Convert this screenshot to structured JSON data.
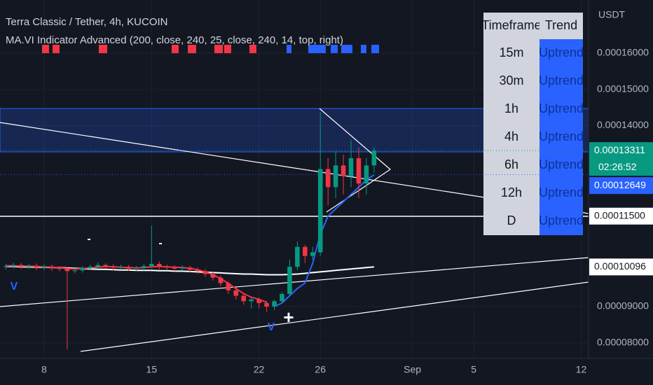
{
  "chart_data": {
    "type": "candlestick",
    "title": "Terra Classic / Tether, 4h, KUCOIN",
    "subtitle": "MA.VI Indicator Advanced (200, close, 240, 25, close, 240, 14, top, right)",
    "y_axis_unit": "USDT",
    "up_color": "#089981",
    "down_color": "#f23645",
    "x": [
      5.5,
      6,
      6.5,
      7,
      7.5,
      8,
      8.5,
      9,
      9.5,
      10,
      10.5,
      11,
      11.5,
      12,
      12.5,
      13,
      13.5,
      14,
      14.5,
      15,
      15.5,
      16,
      16.5,
      17,
      17.5,
      18,
      18.5,
      19,
      19.5,
      20,
      20.5,
      21,
      21.5,
      22,
      22.5,
      23,
      23.5,
      24,
      24.5,
      25,
      25.5,
      26,
      26.5,
      27,
      27.5,
      28,
      28.5,
      29,
      29.5
    ],
    "open": [
      0.000101,
      0.0001012,
      0.0001015,
      0.000101,
      0.0001013,
      0.0001008,
      0.0001011,
      0.0001006,
      0.0001005,
      9.98e-05,
      0.0001,
      0.0001006,
      0.000101,
      0.0001015,
      0.0001012,
      0.0001008,
      0.000101,
      0.0001005,
      0.0001007,
      0.0001012,
      0.0001018,
      0.000101,
      0.0001009,
      0.0001005,
      0.0001008,
      0.0001002,
      9.98e-05,
      9.9e-05,
      9.8e-05,
      9.65e-05,
      9.45e-05,
      9.3e-05,
      9.15e-05,
      9.2e-05,
      9.1e-05,
      9e-05,
      9.15e-05,
      9.35e-05,
      0.000101,
      0.0001065,
      0.000104,
      0.000105,
      0.000128,
      0.000123,
      0.000129,
      0.000126,
      0.000131,
      0.000124,
      0.000129
    ],
    "high": [
      0.0001019,
      0.0001021,
      0.000102,
      0.0001018,
      0.0001019,
      0.0001017,
      0.0001016,
      0.0001012,
      0.000101,
      0.0001006,
      0.0001012,
      0.0001016,
      0.0001022,
      0.000102,
      0.0001017,
      0.0001016,
      0.0001015,
      0.0001012,
      0.0001018,
      0.0001124,
      0.0001025,
      0.0001016,
      0.0001014,
      0.0001014,
      0.0001013,
      0.0001008,
      0.0001004,
      9.96e-05,
      9.86e-05,
      9.7e-05,
      9.5e-05,
      9.35e-05,
      9.26e-05,
      9.25e-05,
      9.16e-05,
      9.2e-05,
      9.4e-05,
      0.000103,
      0.000108,
      0.000107,
      0.0001065,
      0.0001437,
      0.000131,
      0.000133,
      0.000132,
      0.000136,
      0.000134,
      0.000131,
      0.000134
    ],
    "low": [
      0.0001003,
      0.0001005,
      0.0001004,
      0.0001004,
      0.0001001,
      0.0001001,
      9.99e-05,
      9.98e-05,
      7.82e-05,
      9.92e-05,
      9.94e-05,
      0.0001,
      0.0001004,
      0.0001006,
      0.0001001,
      0.0001002,
      9.99e-05,
      9.99e-05,
      0.0001,
      0.0001006,
      0.0001003,
      0.0001002,
      9.98e-05,
      9.99e-05,
      9.95e-05,
      9.9e-05,
      9.82e-05,
      9.72e-05,
      9.56e-05,
      9.35e-05,
      9.2e-05,
      9.05e-05,
      8.95e-05,
      8.95e-05,
      8.85e-05,
      8.9e-05,
      9.08e-05,
      9.3e-05,
      0.0001,
      0.000102,
      0.000103,
      0.000104,
      0.000118,
      0.00012,
      0.000121,
      0.000123,
      0.00012,
      0.000121,
      0.000127
    ],
    "close": [
      0.0001012,
      0.0001015,
      0.000101,
      0.0001013,
      0.0001008,
      0.0001011,
      0.0001006,
      0.0001005,
      9.98e-05,
      0.0001,
      0.0001006,
      0.000101,
      0.0001015,
      0.0001012,
      0.0001008,
      0.000101,
      0.0001005,
      0.0001007,
      0.0001012,
      0.0001018,
      0.000101,
      0.0001009,
      0.0001005,
      0.0001008,
      0.0001002,
      9.98e-05,
      9.9e-05,
      9.8e-05,
      9.65e-05,
      9.45e-05,
      9.3e-05,
      9.15e-05,
      9.2e-05,
      9.1e-05,
      9e-05,
      9.15e-05,
      9.35e-05,
      0.000101,
      0.0001065,
      0.000104,
      0.000105,
      0.000128,
      0.000123,
      0.000129,
      0.000126,
      0.000131,
      0.000124,
      0.000129,
      0.00013311
    ],
    "series": [
      {
        "color": "#ffffff",
        "values": [
          0.0001011,
          0.0001011,
          0.000101,
          0.000101,
          0.0001009,
          0.0001009,
          0.0001008,
          0.0001008,
          0.0001007,
          0.0001006,
          0.0001005,
          0.0001004,
          0.0001003,
          0.0001003,
          0.0001002,
          0.0001001,
          0.0001001,
          0.0001,
          0.0001,
          0.0001,
          9.99e-05,
          9.99e-05,
          9.98e-05,
          9.98e-05,
          9.97e-05,
          9.96e-05,
          9.95e-05,
          9.94e-05,
          9.93e-05,
          9.92e-05,
          9.91e-05,
          9.9e-05,
          9.9e-05,
          9.89e-05,
          9.88e-05,
          9.88e-05,
          9.88e-05,
          9.89e-05,
          9.9e-05,
          9.92e-05,
          9.94e-05,
          9.96e-05,
          9.98e-05,
          0.0001,
          0.0001002,
          0.0001004,
          0.0001006,
          0.0001008,
          0.000101
        ]
      },
      {
        "color": "#f23645",
        "values": [
          0.0001013,
          0.0001013,
          0.0001012,
          0.0001012,
          0.0001011,
          0.000101,
          0.0001009,
          0.0001008,
          0.0001005,
          0.0001004,
          0.0001005,
          0.0001007,
          0.0001009,
          0.0001011,
          0.000101,
          0.0001009,
          0.0001008,
          0.0001007,
          0.0001008,
          0.000101,
          0.0001011,
          0.000101,
          0.0001009,
          0.0001008,
          0.0001006,
          0.0001002,
          9.96e-05,
          9.88e-05,
          9.78e-05,
          9.64e-05,
          9.5e-05,
          9.36e-05,
          9.26e-05,
          9.2e-05,
          9.12e-05,
          null,
          null,
          null,
          null,
          null,
          null,
          null,
          null,
          null,
          null,
          null,
          null,
          null,
          null
        ]
      },
      {
        "color": "#2962ff",
        "values": [
          null,
          null,
          null,
          null,
          null,
          null,
          null,
          null,
          null,
          null,
          null,
          null,
          null,
          null,
          null,
          null,
          null,
          null,
          null,
          null,
          null,
          null,
          null,
          null,
          null,
          null,
          null,
          null,
          null,
          null,
          null,
          null,
          null,
          null,
          null,
          9e-05,
          9.1e-05,
          9.3e-05,
          9.5e-05,
          9.65e-05,
          0.000102,
          0.00011,
          0.000115,
          0.000117,
          0.000119,
          0.000121,
          0.000123,
          0.000125,
          0.0001264
        ]
      }
    ],
    "xlim": [
      5.12,
      43.48
    ],
    "xticks": [
      8,
      15,
      22,
      26,
      {
        "value": 32,
        "label": "Sep"
      },
      {
        "value": 36,
        "label": "5"
      },
      {
        "value": 43,
        "label": "12"
      }
    ],
    "ylim": [
      7.57e-05,
      0.0001747
    ],
    "yticks": [
      {
        "value": 0.00016,
        "label": "0.00016000"
      },
      {
        "value": 0.00015,
        "label": "0.00015000"
      },
      {
        "value": 0.00014,
        "label": "0.00014000"
      },
      {
        "value": 9e-05,
        "label": "0.00009000"
      },
      {
        "value": 8e-05,
        "label": "0.00008000"
      }
    ],
    "price_tags": [
      {
        "value": 0.00013311,
        "label": "0.00013311",
        "color": "#089981"
      },
      {
        "value": 0.00012649,
        "label": "0.00012649",
        "color": "#2962ff"
      },
      {
        "value": 0.000115,
        "label": "0.00011500",
        "color": "#ffffff"
      },
      {
        "value": 0.00010096,
        "label": "0.00010096",
        "color": "#ffffff"
      }
    ],
    "countdown": "02:26:52",
    "markers": [
      "V",
      "-",
      "-",
      "+",
      "V"
    ]
  },
  "trend_table": {
    "header": [
      "Timeframe",
      "Trend"
    ],
    "rows": [
      [
        "15m",
        "Uptrend"
      ],
      [
        "30m",
        "Uptrend"
      ],
      [
        "1h",
        "Uptrend"
      ],
      [
        "4h",
        "Uptrend"
      ],
      [
        "6h",
        "Uptrend"
      ],
      [
        "12h",
        "Uptrend"
      ],
      [
        "D",
        "Uptrend"
      ]
    ]
  }
}
